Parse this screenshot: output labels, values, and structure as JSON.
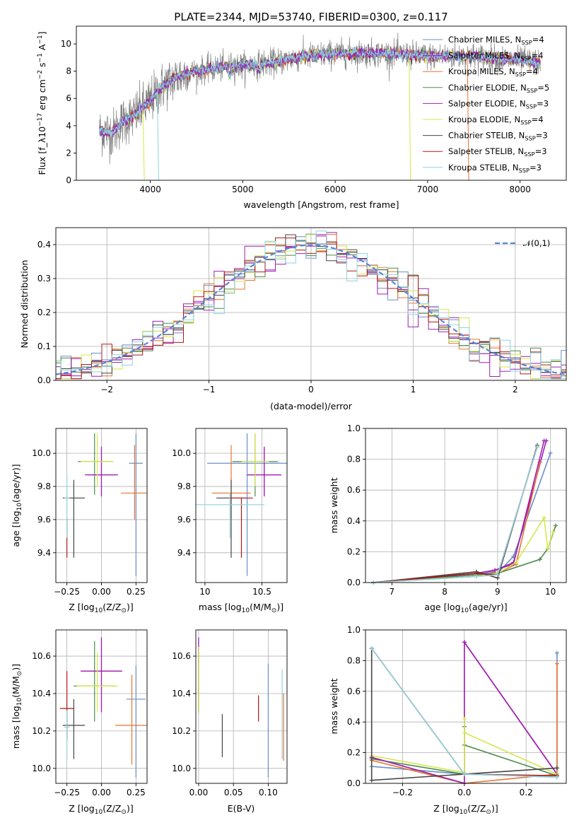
{
  "title": "PLATE=2344, MJD=53740, FIBERID=0300, z=0.117",
  "series": [
    {
      "name": "Chabrier MILES, N_{SSP}=4",
      "color": "#6b8ec9"
    },
    {
      "name": "Salpeter MILES, N_{SSP}=4",
      "color": "#9b1fb5"
    },
    {
      "name": "Kroupa MILES, N_{SSP}=4",
      "color": "#e8732e"
    },
    {
      "name": "Chabrier ELODIE, N_{SSP}=5",
      "color": "#4d8a4d"
    },
    {
      "name": "Salpeter ELODIE, N_{SSP}=3",
      "color": "#a020b0"
    },
    {
      "name": "Kroupa ELODIE, N_{SSP}=4",
      "color": "#d4e84a"
    },
    {
      "name": "Chabrier STELIB, N_{SSP}=3",
      "color": "#444444"
    },
    {
      "name": "Salpeter STELIB, N_{SSP}=3",
      "color": "#b01818"
    },
    {
      "name": "Kroupa STELIB, N_{SSP}=3",
      "color": "#8fd3e0"
    }
  ],
  "chart_data": [
    {
      "id": "spectrum",
      "type": "line",
      "xlabel": "wavelength [Angstrom, rest frame]",
      "ylabel": "Flux [f_λ10^{−17} erg cm^{−2} s^{−1} A^{−1}]",
      "xlim": [
        3200,
        8500
      ],
      "ylim": [
        0,
        11.3
      ],
      "xticks": [
        4000,
        5000,
        6000,
        7000,
        8000
      ],
      "yticks": [
        0,
        2,
        4,
        6,
        8,
        10
      ],
      "data_range": [
        3450,
        8220
      ],
      "continuum": {
        "x": [
          3450,
          3600,
          3700,
          3800,
          3900,
          4000,
          4100,
          4200,
          4300,
          4500,
          4800,
          5000,
          5300,
          5600,
          6000,
          6500,
          7000,
          7500,
          8000,
          8220
        ],
        "y": [
          3.6,
          3.5,
          4.3,
          4.6,
          5.2,
          5.8,
          6.7,
          7.2,
          7.6,
          8.0,
          8.3,
          8.4,
          8.6,
          9.0,
          9.3,
          9.3,
          9.1,
          9.1,
          8.8,
          8.6
        ]
      },
      "legend_loc": "upper right",
      "grid": false
    },
    {
      "id": "residuals",
      "type": "histogram",
      "xlabel": "(data-model)/error",
      "ylabel": "Normed distribution",
      "xlim": [
        -2.5,
        2.5
      ],
      "ylim": [
        0,
        0.45
      ],
      "xticks": [
        -2,
        -1,
        0,
        1,
        2
      ],
      "yticks": [
        0.0,
        0.1,
        0.2,
        0.3,
        0.4
      ],
      "bin_width": 0.1,
      "reference": {
        "label": "𝒩(0,1)",
        "mean": 0,
        "sigma": 1
      },
      "legend_loc": "upper right",
      "grid": true
    },
    {
      "id": "z_age",
      "type": "errorbar",
      "xlabel": "Z [log10(Z/Z⊙)]",
      "ylabel": "age [log10(age/yr)]",
      "xlim": [
        -0.33,
        0.33
      ],
      "ylim": [
        9.22,
        10.15
      ],
      "xticks": [
        -0.25,
        0.0,
        0.25
      ],
      "xticklabels": [
        "−0.25",
        "0.00",
        "0.25"
      ],
      "yticks": [
        9.4,
        9.6,
        9.8,
        10.0
      ],
      "points": [
        {
          "x": 0.25,
          "xerr": 0.05,
          "y": 9.94,
          "ylo": 9.26,
          "yhi": 10.12
        },
        {
          "x": 0.0,
          "xerr": 0.12,
          "y": 9.87,
          "ylo": 9.74,
          "yhi": 10.04
        },
        {
          "x": 0.24,
          "xerr": 0.1,
          "y": 9.76,
          "ylo": 9.6,
          "yhi": 10.05
        },
        {
          "x": -0.05,
          "xerr": 0.12,
          "y": 9.95,
          "ylo": 9.75,
          "yhi": 10.12
        },
        {
          "x": 0.0,
          "xerr": 0.1,
          "y": 9.87,
          "ylo": 9.74,
          "yhi": 10.04
        },
        {
          "x": -0.03,
          "xerr": 0.12,
          "y": 9.95,
          "ylo": 9.8,
          "yhi": 10.12
        },
        {
          "x": -0.2,
          "xerr": 0.08,
          "y": 9.73,
          "ylo": 9.37,
          "yhi": 9.84
        },
        {
          "x": -0.25,
          "xerr": 0.02,
          "y": 9.73,
          "ylo": 9.37,
          "yhi": 9.61
        },
        {
          "x": -0.25,
          "xerr": 0.02,
          "y": 9.73,
          "ylo": 9.49,
          "yhi": 9.87
        }
      ],
      "grid": true
    },
    {
      "id": "mass_age",
      "type": "errorbar",
      "xlabel": "mass [log10(M/M⊙)]",
      "ylabel": "",
      "xlim": [
        9.92,
        10.72
      ],
      "ylim": [
        9.22,
        10.15
      ],
      "xticks": [
        10.0,
        10.5
      ],
      "yticks": [
        9.4,
        9.6,
        9.8,
        10.0
      ],
      "points": [
        {
          "x": 10.37,
          "xerr": 0.35,
          "y": 9.94,
          "ylo": 9.26,
          "yhi": 10.12
        },
        {
          "x": 10.52,
          "xerr": 0.15,
          "y": 9.87,
          "ylo": 9.74,
          "yhi": 10.04
        },
        {
          "x": 10.23,
          "xerr": 0.17,
          "y": 9.76,
          "ylo": 9.61,
          "yhi": 10.05
        },
        {
          "x": 10.44,
          "xerr": 0.2,
          "y": 9.95,
          "ylo": 9.74,
          "yhi": 10.12
        },
        {
          "x": 10.52,
          "xerr": 0.15,
          "y": 9.87,
          "ylo": 9.74,
          "yhi": 10.04
        },
        {
          "x": 10.44,
          "xerr": 0.12,
          "y": 9.95,
          "ylo": 9.8,
          "yhi": 10.12
        },
        {
          "x": 10.23,
          "xerr": 0.13,
          "y": 9.73,
          "ylo": 9.37,
          "yhi": 9.84
        },
        {
          "x": 10.32,
          "xerr": 0.1,
          "y": 9.73,
          "ylo": 9.37,
          "yhi": 9.73
        },
        {
          "x": 10.22,
          "xerr": 0.3,
          "y": 9.69,
          "ylo": 9.49,
          "yhi": 9.76
        }
      ],
      "grid": true
    },
    {
      "id": "age_weight",
      "type": "line",
      "xlabel": "age [log10(age/yr)]",
      "ylabel": "mass weight",
      "xlim": [
        6.5,
        10.3
      ],
      "ylim": [
        0,
        1
      ],
      "xticks": [
        7,
        8,
        9,
        10
      ],
      "yticks": [
        0.0,
        0.2,
        0.4,
        0.6,
        0.8,
        1.0
      ],
      "series": [
        {
          "x": [
            6.65,
            8.6,
            8.9,
            9.0,
            9.3,
            10.0
          ],
          "y": [
            0.0,
            0.05,
            0.07,
            0.06,
            0.17,
            0.84
          ]
        },
        {
          "x": [
            6.65,
            8.6,
            8.95,
            9.3,
            9.92
          ],
          "y": [
            0.0,
            0.06,
            0.08,
            0.13,
            0.92
          ]
        },
        {
          "x": [
            6.65,
            8.6,
            8.9,
            9.0,
            9.35,
            9.8
          ],
          "y": [
            0.0,
            0.04,
            0.06,
            0.06,
            0.12,
            0.78
          ]
        },
        {
          "x": [
            6.65,
            8.6,
            9.0,
            9.8,
            9.95,
            10.1
          ],
          "y": [
            0.0,
            0.05,
            0.06,
            0.15,
            0.22,
            0.37
          ]
        },
        {
          "x": [
            6.65,
            8.6,
            8.95,
            9.3,
            9.88
          ],
          "y": [
            0.0,
            0.06,
            0.08,
            0.12,
            0.92
          ]
        },
        {
          "x": [
            6.65,
            8.6,
            9.0,
            9.35,
            9.88,
            9.95,
            10.05
          ],
          "y": [
            0.0,
            0.04,
            0.06,
            0.13,
            0.42,
            0.22,
            0.33
          ]
        },
        {
          "x": [
            6.65,
            8.6,
            9.0,
            9.75
          ],
          "y": [
            0.0,
            0.07,
            0.03,
            0.89
          ]
        },
        {
          "x": [
            6.65,
            8.6,
            9.0,
            9.75
          ],
          "y": [
            0.0,
            0.06,
            0.05,
            0.88
          ]
        },
        {
          "x": [
            6.65,
            8.6,
            9.0,
            9.75
          ],
          "y": [
            0.0,
            0.04,
            0.05,
            0.88
          ]
        }
      ],
      "grid": true
    },
    {
      "id": "z_mass",
      "type": "errorbar",
      "xlabel": "Z [log10(Z/Z⊙)]",
      "ylabel": "mass [log10(M/M⊙)]",
      "xlim": [
        -0.33,
        0.33
      ],
      "ylim": [
        9.92,
        10.74
      ],
      "xticks": [
        -0.25,
        0.0,
        0.25
      ],
      "xticklabels": [
        "−0.25",
        "0.00",
        "0.25"
      ],
      "yticks": [
        10.0,
        10.2,
        10.4,
        10.6
      ],
      "points": [
        {
          "x": 0.25,
          "xerr": 0.07,
          "y": 10.37,
          "ylo": 9.95,
          "yhi": 10.55
        },
        {
          "x": 0.0,
          "xerr": 0.15,
          "y": 10.52,
          "ylo": 10.3,
          "yhi": 10.7
        },
        {
          "x": 0.22,
          "xerr": 0.12,
          "y": 10.23,
          "ylo": 10.02,
          "yhi": 10.5
        },
        {
          "x": -0.05,
          "xerr": 0.15,
          "y": 10.44,
          "ylo": 10.25,
          "yhi": 10.68
        },
        {
          "x": 0.0,
          "xerr": 0.15,
          "y": 10.52,
          "ylo": 10.3,
          "yhi": 10.7
        },
        {
          "x": -0.03,
          "xerr": 0.15,
          "y": 10.44,
          "ylo": 10.3,
          "yhi": 10.62
        },
        {
          "x": -0.2,
          "xerr": 0.08,
          "y": 10.23,
          "ylo": 10.05,
          "yhi": 10.37
        },
        {
          "x": -0.25,
          "xerr": 0.05,
          "y": 10.32,
          "ylo": 10.15,
          "yhi": 10.52
        },
        {
          "x": -0.25,
          "xerr": 0.02,
          "y": 10.22,
          "ylo": 10.05,
          "yhi": 10.31
        }
      ],
      "grid": true
    },
    {
      "id": "ebv_mass",
      "type": "errorbar",
      "xlabel": "E(B-V)",
      "ylabel": "",
      "xlim": [
        -0.004,
        0.127
      ],
      "ylim": [
        9.92,
        10.74
      ],
      "xticks": [
        0.0,
        0.05,
        0.1
      ],
      "xticklabels": [
        "0.00",
        "0.05",
        "0.10"
      ],
      "yticks": [
        10.0,
        10.2,
        10.4,
        10.6
      ],
      "points": [
        {
          "x": 0.1,
          "y": 10.37,
          "ylo": 9.95,
          "yhi": 10.56
        },
        {
          "x": 0.0,
          "y": 10.52,
          "ylo": 10.3,
          "yhi": 10.7
        },
        {
          "x": 0.122,
          "y": 10.23,
          "ylo": 10.04,
          "yhi": 10.4
        },
        {
          "x": 0.0,
          "y": 10.44,
          "ylo": 10.3,
          "yhi": 10.65
        },
        {
          "x": 0.0,
          "y": 10.52,
          "ylo": 10.3,
          "yhi": 10.7
        },
        {
          "x": 0.0,
          "y": 10.44,
          "ylo": 10.3,
          "yhi": 10.65
        },
        {
          "x": 0.034,
          "y": 10.23,
          "ylo": 10.06,
          "yhi": 10.29
        },
        {
          "x": 0.086,
          "y": 10.32,
          "ylo": 10.25,
          "yhi": 10.39
        },
        {
          "x": 0.12,
          "y": 10.22,
          "ylo": 10.05,
          "yhi": 10.53
        }
      ],
      "grid": true
    },
    {
      "id": "z_weight",
      "type": "line",
      "xlabel": "Z [log10(Z/Z⊙)]",
      "ylabel": "mass weight",
      "xlim": [
        -0.32,
        0.33
      ],
      "ylim": [
        0,
        1
      ],
      "xticks": [
        -0.2,
        0.0,
        0.2
      ],
      "xticklabels": [
        "−0.2",
        "0.0",
        "0.2"
      ],
      "yticks": [
        0.0,
        0.2,
        0.4,
        0.6,
        0.8,
        1.0
      ],
      "series": [
        {
          "x": [
            -0.3,
            0.0,
            0.3,
            0.3
          ],
          "y": [
            0.11,
            0.06,
            0.04,
            0.85
          ]
        },
        {
          "x": [
            -0.3,
            0.0,
            0.0,
            0.3
          ],
          "y": [
            0.17,
            0.0,
            0.92,
            0.06
          ]
        },
        {
          "x": [
            -0.3,
            0.0,
            0.3,
            0.3
          ],
          "y": [
            0.15,
            0.0,
            0.06,
            0.78
          ]
        },
        {
          "x": [
            -0.3,
            0.0,
            0.0,
            0.0,
            0.3
          ],
          "y": [
            0.16,
            0.06,
            0.37,
            0.25,
            0.05
          ]
        },
        {
          "x": [
            -0.3,
            0.0,
            0.0,
            0.3
          ],
          "y": [
            0.17,
            0.0,
            0.92,
            0.06
          ]
        },
        {
          "x": [
            -0.3,
            0.0,
            0.0,
            0.0,
            0.3
          ],
          "y": [
            0.18,
            0.07,
            0.42,
            0.33,
            0.06
          ]
        },
        {
          "x": [
            -0.3,
            -0.3,
            0.3
          ],
          "y": [
            0.88,
            0.02,
            0.1
          ]
        },
        {
          "x": [
            -0.3,
            0.0,
            0.3
          ],
          "y": [
            0.88,
            0.06,
            0.05
          ]
        },
        {
          "x": [
            -0.3,
            0.0,
            0.3
          ],
          "y": [
            0.88,
            0.06,
            0.04
          ]
        }
      ],
      "grid": true
    }
  ]
}
